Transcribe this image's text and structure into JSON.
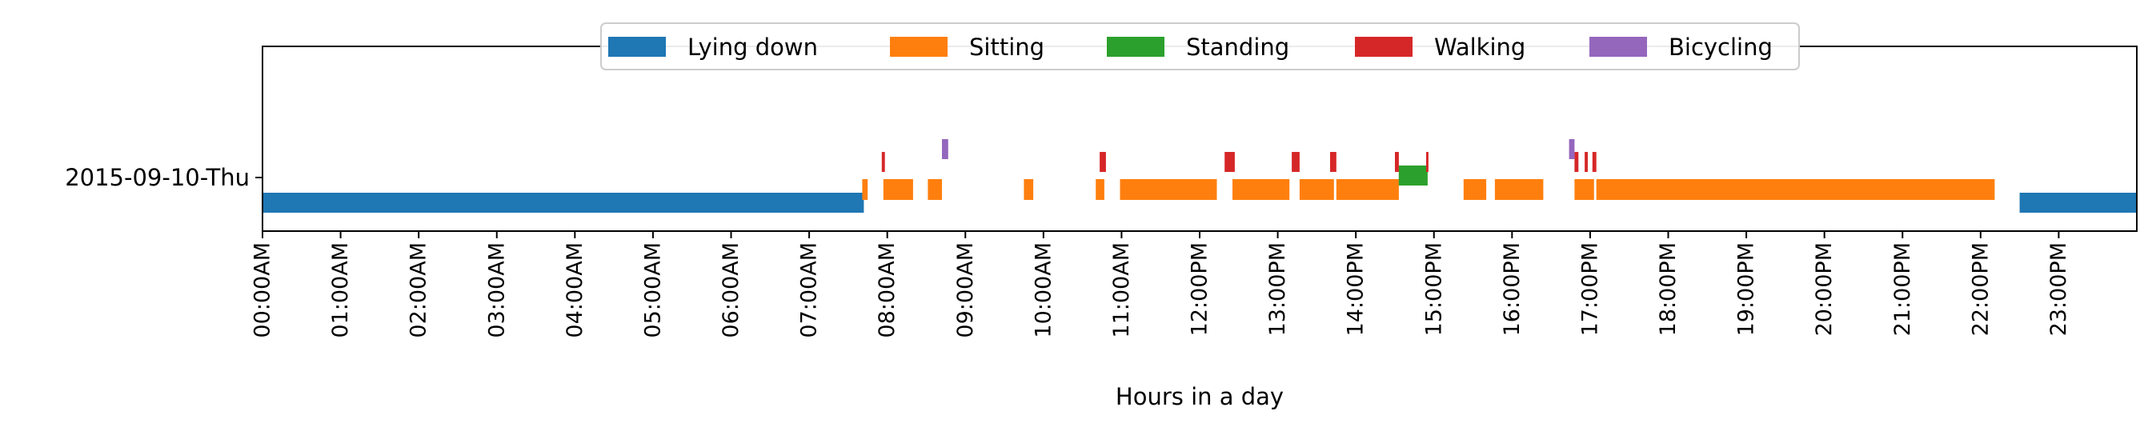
{
  "chart_data": {
    "type": "timeline",
    "xlabel": "Hours in a day",
    "ylabel": "",
    "xlim": [
      0,
      24
    ],
    "row_labels": [
      "2015-09-10-Thu"
    ],
    "xticks": [
      {
        "value": 0,
        "label": "00:00AM"
      },
      {
        "value": 1,
        "label": "01:00AM"
      },
      {
        "value": 2,
        "label": "02:00AM"
      },
      {
        "value": 3,
        "label": "03:00AM"
      },
      {
        "value": 4,
        "label": "04:00AM"
      },
      {
        "value": 5,
        "label": "05:00AM"
      },
      {
        "value": 6,
        "label": "06:00AM"
      },
      {
        "value": 7,
        "label": "07:00AM"
      },
      {
        "value": 8,
        "label": "08:00AM"
      },
      {
        "value": 9,
        "label": "09:00AM"
      },
      {
        "value": 10,
        "label": "10:00AM"
      },
      {
        "value": 11,
        "label": "11:00AM"
      },
      {
        "value": 12,
        "label": "12:00PM"
      },
      {
        "value": 13,
        "label": "13:00PM"
      },
      {
        "value": 14,
        "label": "14:00PM"
      },
      {
        "value": 15,
        "label": "15:00PM"
      },
      {
        "value": 16,
        "label": "16:00PM"
      },
      {
        "value": 17,
        "label": "17:00PM"
      },
      {
        "value": 18,
        "label": "18:00PM"
      },
      {
        "value": 19,
        "label": "19:00PM"
      },
      {
        "value": 20,
        "label": "20:00PM"
      },
      {
        "value": 21,
        "label": "21:00PM"
      },
      {
        "value": 22,
        "label": "22:00PM"
      },
      {
        "value": 23,
        "label": "23:00PM"
      }
    ],
    "legend_position": "top-center",
    "series": [
      {
        "name": "Lying down",
        "color": "#1f77b4",
        "intervals": [
          [
            0.0,
            7.7
          ],
          [
            22.5,
            24.0
          ]
        ]
      },
      {
        "name": "Sitting",
        "color": "#ff7f0e",
        "intervals": [
          [
            7.68,
            7.75
          ],
          [
            7.95,
            8.33
          ],
          [
            8.52,
            8.7
          ],
          [
            9.75,
            9.87
          ],
          [
            10.67,
            10.78
          ],
          [
            10.98,
            12.22
          ],
          [
            12.42,
            13.15
          ],
          [
            13.28,
            13.72
          ],
          [
            13.75,
            14.55
          ],
          [
            15.38,
            15.67
          ],
          [
            15.78,
            16.4
          ],
          [
            16.8,
            17.05
          ],
          [
            17.08,
            22.18
          ]
        ]
      },
      {
        "name": "Standing",
        "color": "#2ca02c",
        "intervals": [
          [
            14.55,
            14.92
          ]
        ]
      },
      {
        "name": "Walking",
        "color": "#d62728",
        "intervals": [
          [
            7.93,
            7.97
          ],
          [
            10.72,
            10.8
          ],
          [
            12.32,
            12.45
          ],
          [
            13.18,
            13.28
          ],
          [
            13.67,
            13.75
          ],
          [
            14.5,
            14.55
          ],
          [
            14.9,
            14.93
          ],
          [
            16.8,
            16.85
          ],
          [
            16.93,
            16.97
          ],
          [
            17.03,
            17.08
          ]
        ]
      },
      {
        "name": "Bicycling",
        "color": "#9467bd",
        "intervals": [
          [
            8.7,
            8.78
          ],
          [
            16.73,
            16.77
          ],
          [
            16.77,
            16.8
          ]
        ]
      }
    ]
  }
}
